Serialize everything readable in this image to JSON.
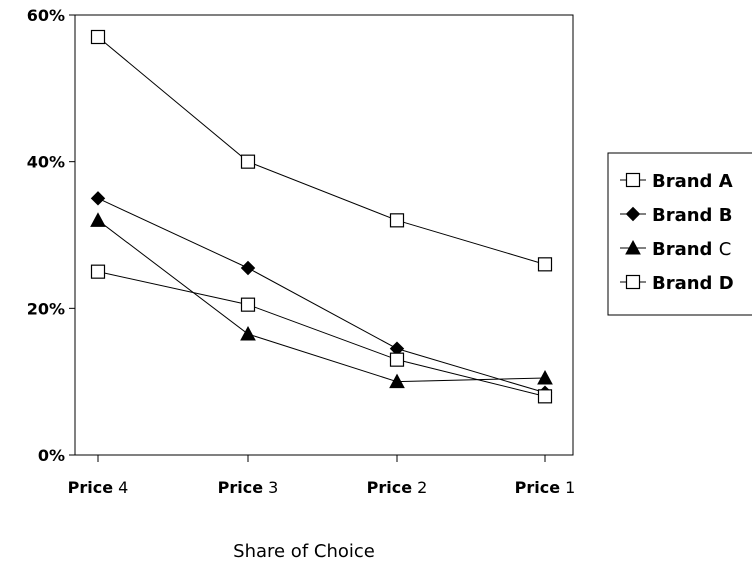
{
  "chart_data": {
    "type": "line",
    "categories": [
      "Price 4",
      "Price 3",
      "Price 2",
      "Price 1"
    ],
    "ylim": [
      0,
      60
    ],
    "yticks": [
      0,
      20,
      40,
      60
    ],
    "ytick_labels": [
      "0%",
      "20%",
      "40%",
      "60%"
    ],
    "xlabel": "Share of Choice",
    "ylabel": "",
    "title": "",
    "grid": false,
    "legend_position": "right",
    "series": [
      {
        "name": "Brand A",
        "marker": "open-square",
        "values": [
          57,
          40,
          32,
          26
        ]
      },
      {
        "name": "Brand B",
        "marker": "filled-diamond",
        "values": [
          35,
          25.5,
          14.5,
          8.5
        ]
      },
      {
        "name": "Brand C",
        "marker": "filled-triangle",
        "values": [
          32,
          16.5,
          10,
          10.5
        ]
      },
      {
        "name": "Brand D",
        "marker": "open-square",
        "values": [
          25,
          20.5,
          13,
          8
        ]
      }
    ]
  }
}
